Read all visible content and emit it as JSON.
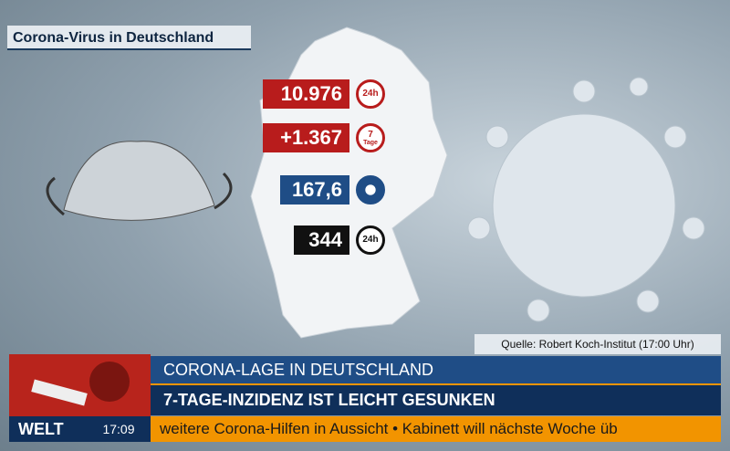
{
  "header": {
    "title": "Corona-Virus in Deutschland"
  },
  "stats": [
    {
      "value": "10.976",
      "icon": [
        "24h"
      ]
    },
    {
      "value": "+1.367",
      "icon": [
        "7",
        "Tage"
      ]
    },
    {
      "value": "167,6",
      "icon": []
    },
    {
      "value": "344",
      "icon": [
        "24h"
      ]
    }
  ],
  "source": "Quelle: Robert Koch-Institut (17:00 Uhr)",
  "lower_third": {
    "topline": "CORONA-LAGE IN DEUTSCHLAND",
    "headline": "7-TAGE-INZIDENZ IST LEICHT GESUNKEN"
  },
  "footer": {
    "brand": "WELT",
    "time": "17:09",
    "ticker": "weitere Corona-Hilfen in Aussicht • Kabinett will nächste Woche üb"
  }
}
